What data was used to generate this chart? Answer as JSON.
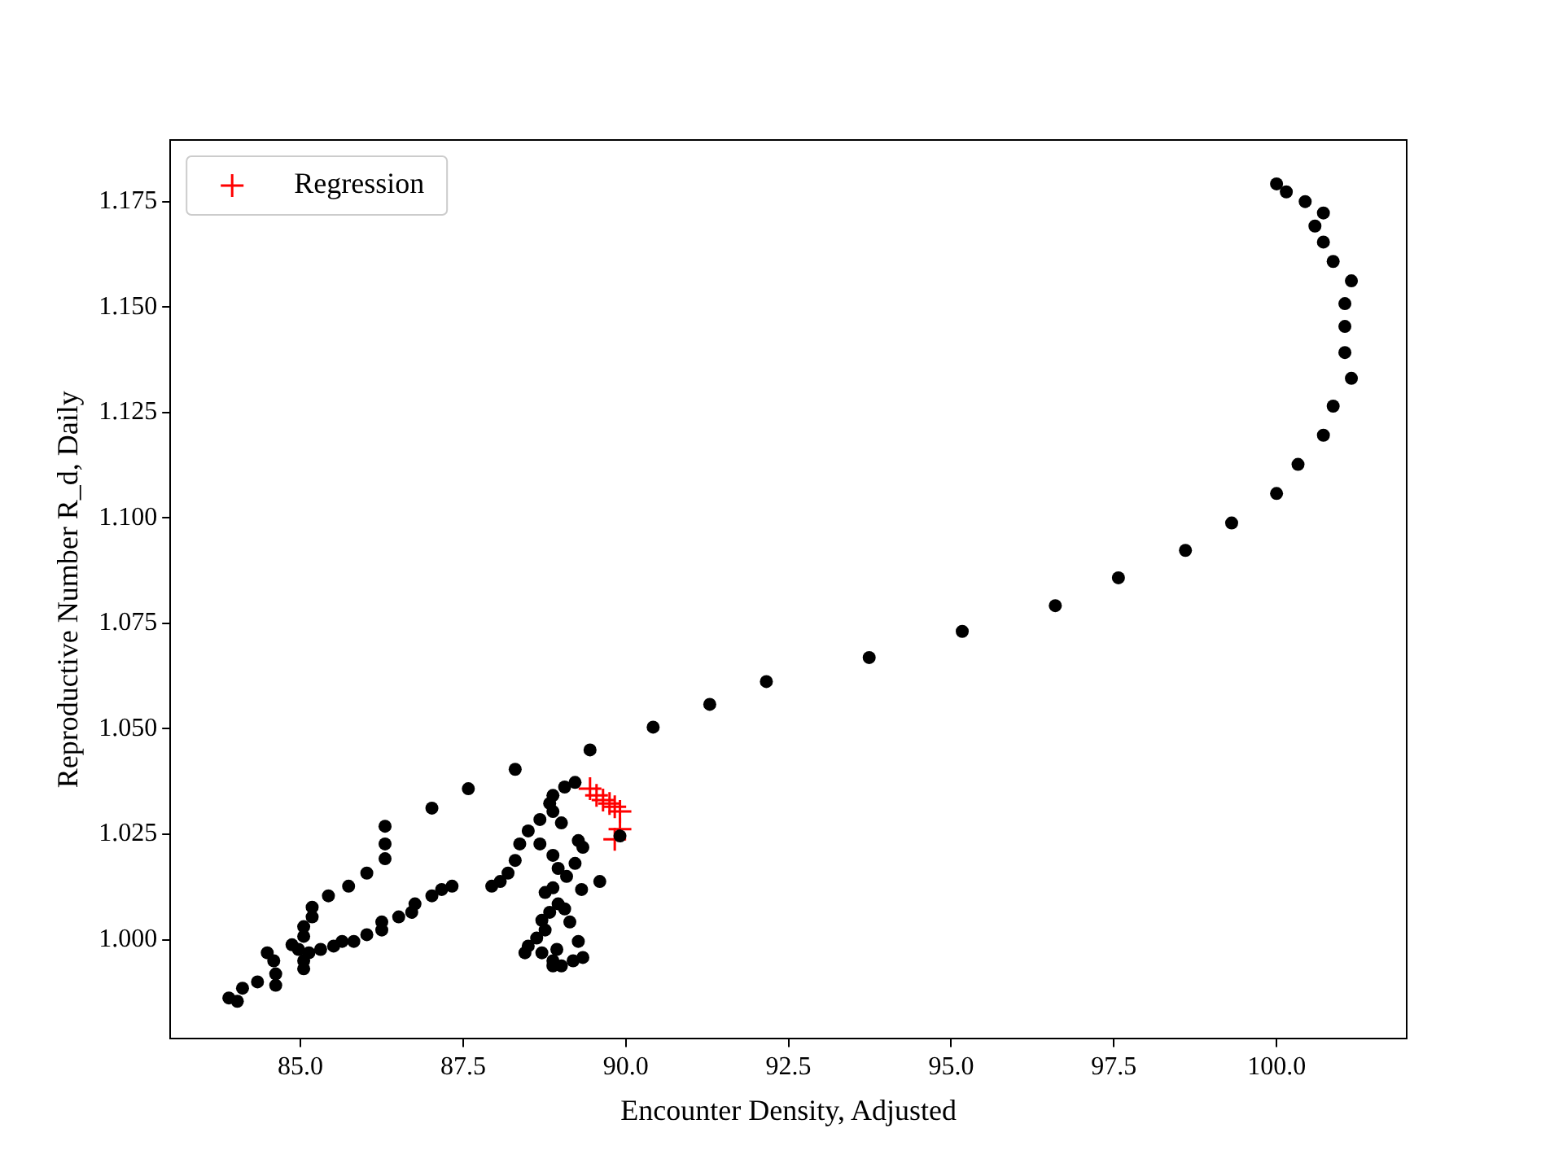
{
  "chart_data": {
    "type": "scatter",
    "xlabel": "Encounter Density, Adjusted",
    "ylabel": "Reproductive Number R_d, Daily",
    "xlim": [
      83.0,
      102.0
    ],
    "ylim": [
      0.9765,
      1.1896
    ],
    "xticks": [
      {
        "value": 85,
        "label": "85.0"
      },
      {
        "value": 87.5,
        "label": "87.5"
      },
      {
        "value": 90,
        "label": "90.0"
      },
      {
        "value": 92.5,
        "label": "92.5"
      },
      {
        "value": 95,
        "label": "95.0"
      },
      {
        "value": 97.5,
        "label": "97.5"
      },
      {
        "value": 100,
        "label": "100.0"
      }
    ],
    "yticks": [
      {
        "value": 1,
        "label": "1.000"
      },
      {
        "value": 1.025,
        "label": "1.025"
      },
      {
        "value": 1.05,
        "label": "1.050"
      },
      {
        "value": 1.075,
        "label": "1.075"
      },
      {
        "value": 1.1,
        "label": "1.100"
      },
      {
        "value": 1.125,
        "label": "1.125"
      },
      {
        "value": 1.15,
        "label": "1.150"
      },
      {
        "value": 1.175,
        "label": "1.175"
      }
    ],
    "grid": false,
    "legend": "top left",
    "series": [
      {
        "color": "#000000",
        "marker": "circle",
        "x": [
          100.0,
          100.15,
          100.44,
          100.72,
          100.59,
          100.72,
          100.87,
          101.15,
          101.05,
          101.05,
          101.05,
          101.15,
          100.87,
          100.72,
          100.33,
          100.0,
          99.31,
          98.6,
          97.57,
          96.6,
          95.17,
          93.74,
          92.16,
          91.29,
          90.42,
          89.45,
          88.3,
          87.58,
          87.02,
          86.3,
          86.3,
          86.3,
          86.02,
          85.74,
          85.43,
          85.18,
          85.18,
          85.05,
          85.05,
          84.87,
          84.49,
          84.59,
          84.62,
          84.62,
          84.34,
          84.11,
          83.9,
          84.03,
          87.33,
          87.17,
          87.02,
          86.76,
          86.71,
          86.51,
          86.25,
          86.25,
          86.02,
          85.82,
          85.64,
          85.51,
          85.31,
          85.13,
          85.05,
          85.05,
          84.97,
          87.94,
          88.07,
          88.19,
          88.3,
          88.37,
          88.5,
          88.68,
          88.83,
          88.88,
          89.06,
          89.22,
          88.88,
          89.01,
          88.68,
          88.88,
          89.27,
          89.34,
          89.22,
          89.09,
          88.96,
          88.88,
          88.76,
          88.96,
          88.83,
          88.71,
          88.76,
          88.63,
          88.5,
          88.45,
          88.71,
          88.94,
          88.88,
          88.88,
          89.01,
          89.19,
          89.34,
          89.27,
          89.14,
          89.06,
          89.32,
          89.6,
          89.91
        ],
        "values": [
          1.1792,
          1.1773,
          1.175,
          1.1723,
          1.1692,
          1.1654,
          1.1608,
          1.1562,
          1.1508,
          1.1454,
          1.1392,
          1.1331,
          1.1265,
          1.1196,
          1.1127,
          1.1058,
          1.0988,
          1.0923,
          1.0858,
          1.0792,
          1.0731,
          1.0669,
          1.0612,
          1.0558,
          1.0504,
          1.045,
          1.0404,
          1.0358,
          1.0312,
          1.0269,
          1.0227,
          1.0192,
          1.0158,
          1.0127,
          1.0104,
          1.0077,
          1.0054,
          1.0031,
          1.0008,
          0.9988,
          0.9969,
          0.995,
          0.9919,
          0.9892,
          0.99,
          0.9885,
          0.9862,
          0.9854,
          1.0127,
          1.0119,
          1.0104,
          1.0085,
          1.0065,
          1.0054,
          1.0042,
          1.0023,
          1.0012,
          0.9996,
          0.9996,
          0.9985,
          0.9977,
          0.9969,
          0.995,
          0.9931,
          0.9977,
          1.0127,
          1.0138,
          1.0158,
          1.0188,
          1.0227,
          1.0258,
          1.0285,
          1.0323,
          1.0342,
          1.0362,
          1.0373,
          1.0304,
          1.0277,
          1.0227,
          1.02,
          1.0235,
          1.0219,
          1.0181,
          1.015,
          1.0169,
          1.0123,
          1.0112,
          1.0085,
          1.0065,
          1.0046,
          1.0023,
          1.0004,
          0.9985,
          0.9969,
          0.9969,
          0.9977,
          0.995,
          0.9938,
          0.9938,
          0.995,
          0.9958,
          0.9996,
          1.0042,
          1.0073,
          1.0119,
          1.0138,
          1.0246
        ]
      },
      {
        "name": "Regression",
        "color": "#ff0000",
        "marker": "cross",
        "x": [
          89.45,
          89.55,
          89.65,
          89.75,
          89.83,
          89.91,
          89.91,
          89.83
        ],
        "values": [
          1.0358,
          1.0342,
          1.0331,
          1.0323,
          1.0315,
          1.0304,
          1.0262,
          1.0238
        ]
      }
    ]
  }
}
